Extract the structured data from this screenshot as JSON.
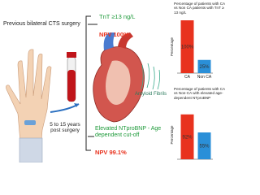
{
  "labels": {
    "surgery": "Previous bilateral CTS surgery",
    "interval": "5 to 15 years post surgery",
    "tnt": "TnT ≥13 ng/L",
    "npv_tnt": "NPV 100%",
    "fibrils": "Amyloid Fibrils",
    "ntprobnp": "Elevated NTproBNP - Age dependent cut-off",
    "npv_bnp": "NPV 99.1%"
  },
  "charts": [
    {
      "type": "bar",
      "title": "Percentage of patients with CA vs Non CA patients with TnT ≥ 13 ng/L",
      "y_label": "Percentage",
      "categories": [
        "CA",
        "Non CA"
      ],
      "values": [
        100,
        25
      ],
      "value_labels": [
        "100%",
        "25%"
      ],
      "colors": [
        "#e8321e",
        "#2a8fd8"
      ],
      "ylim": [
        0,
        100
      ]
    },
    {
      "type": "bar",
      "title": "Percentage of patients with CA vs Non-CA with elevated age-dependent NTproBNP",
      "y_label": "Percentage",
      "categories": [
        null,
        null
      ],
      "values": [
        92,
        55
      ],
      "value_labels": [
        "92%",
        "55%"
      ],
      "colors": [
        "#e8321e",
        "#2a8fd8"
      ],
      "ylim": [
        0,
        100
      ]
    }
  ]
}
